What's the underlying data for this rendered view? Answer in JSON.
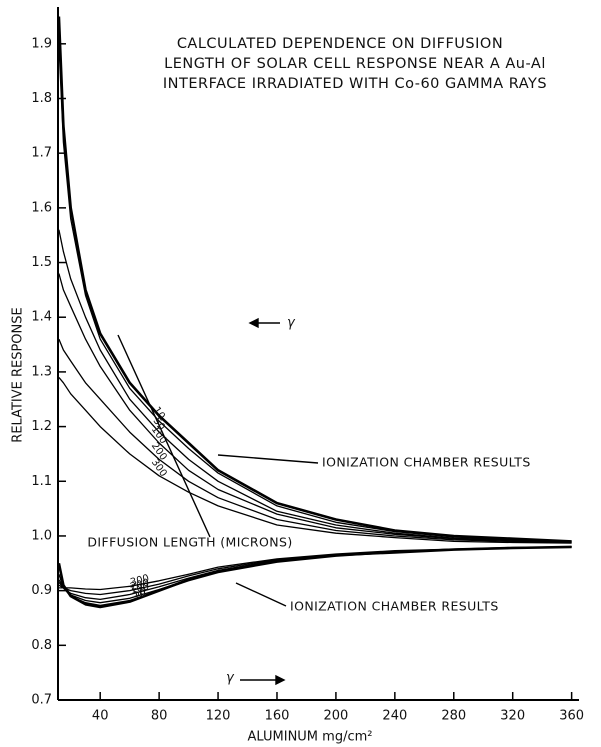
{
  "chart_data": {
    "type": "line",
    "title": [
      "CALCULATED DEPENDENCE ON DIFFUSION",
      "LENGTH OF SOLAR CELL RESPONSE NEAR A Au-Al",
      "INTERFACE IRRADIATED WITH Co-60 GAMMA RAYS"
    ],
    "xlabel": "ALUMINUM mg/cm²",
    "ylabel": "RELATIVE RESPONSE",
    "annotations": [
      "DIFFUSION LENGTH (MICRONS)",
      "γ",
      "γ"
    ],
    "x": [
      12,
      15,
      20,
      30,
      40,
      60,
      80,
      100,
      120,
      160,
      200,
      240,
      280,
      320,
      360
    ],
    "xlim": [
      10,
      365
    ],
    "xticks": [
      40,
      80,
      120,
      160,
      200,
      240,
      280,
      320,
      360
    ],
    "ylim": [
      0.7,
      1.96
    ],
    "yticks": [
      0.7,
      0.8,
      0.9,
      {
        "value": 1,
        "label": "1.0"
      },
      1.1,
      1.2,
      1.3,
      1.4,
      1.5,
      1.6,
      1.7,
      1.8,
      1.9
    ],
    "grid": false,
    "series": [
      {
        "name": "IONIZATION CHAMBER RESULTS",
        "color": "#000",
        "linewidth": 2.6,
        "values": [
          1.95,
          1.75,
          1.6,
          1.45,
          1.37,
          1.28,
          1.22,
          1.17,
          1.12,
          1.06,
          1.03,
          1.01,
          1.0,
          0.995,
          0.99
        ]
      },
      {
        "name": "10",
        "color": "#000",
        "linewidth": 1.3,
        "values": [
          1.9,
          1.72,
          1.58,
          1.44,
          1.36,
          1.27,
          1.21,
          1.16,
          1.115,
          1.055,
          1.025,
          1.008,
          0.998,
          0.993,
          0.99
        ]
      },
      {
        "name": "50",
        "color": "#000",
        "linewidth": 1.3,
        "values": [
          1.56,
          1.52,
          1.47,
          1.4,
          1.34,
          1.25,
          1.19,
          1.14,
          1.1,
          1.045,
          1.02,
          1.005,
          0.996,
          0.992,
          0.99
        ]
      },
      {
        "name": "100",
        "color": "#000",
        "linewidth": 1.3,
        "values": [
          1.48,
          1.45,
          1.42,
          1.36,
          1.31,
          1.23,
          1.17,
          1.12,
          1.085,
          1.04,
          1.015,
          1.003,
          0.995,
          0.99,
          0.988
        ]
      },
      {
        "name": "200",
        "color": "#000",
        "linewidth": 1.3,
        "values": [
          1.36,
          1.34,
          1.32,
          1.28,
          1.25,
          1.19,
          1.14,
          1.1,
          1.07,
          1.03,
          1.01,
          1.0,
          0.993,
          0.99,
          0.988
        ]
      },
      {
        "name": "300",
        "color": "#000",
        "linewidth": 1.3,
        "values": [
          1.29,
          1.28,
          1.26,
          1.23,
          1.2,
          1.15,
          1.11,
          1.08,
          1.055,
          1.02,
          1.005,
          0.997,
          0.99,
          0.988,
          0.987
        ]
      },
      {
        "name": "IONIZATION CHAMBER RESULTS",
        "color": "#000",
        "linewidth": 2.6,
        "values": [
          0.95,
          0.91,
          0.89,
          0.875,
          0.87,
          0.88,
          0.9,
          0.92,
          0.935,
          0.955,
          0.965,
          0.97,
          0.975,
          0.978,
          0.98
        ]
      },
      {
        "name": "10",
        "color": "#000",
        "linewidth": 1.3,
        "values": [
          0.93,
          0.905,
          0.89,
          0.878,
          0.873,
          0.882,
          0.9,
          0.918,
          0.933,
          0.952,
          0.963,
          0.97,
          0.975,
          0.978,
          0.98
        ]
      },
      {
        "name": "50",
        "color": "#000",
        "linewidth": 1.3,
        "values": [
          0.92,
          0.905,
          0.892,
          0.882,
          0.878,
          0.886,
          0.902,
          0.92,
          0.935,
          0.953,
          0.964,
          0.97,
          0.975,
          0.978,
          0.98
        ]
      },
      {
        "name": "100",
        "color": "#000",
        "linewidth": 1.3,
        "values": [
          0.915,
          0.905,
          0.895,
          0.887,
          0.884,
          0.893,
          0.907,
          0.923,
          0.937,
          0.955,
          0.965,
          0.971,
          0.975,
          0.978,
          0.98
        ]
      },
      {
        "name": "200",
        "color": "#000",
        "linewidth": 1.3,
        "values": [
          0.91,
          0.905,
          0.9,
          0.895,
          0.893,
          0.9,
          0.912,
          0.927,
          0.94,
          0.957,
          0.966,
          0.972,
          0.976,
          0.978,
          0.98
        ]
      },
      {
        "name": "300",
        "color": "#000",
        "linewidth": 1.3,
        "values": [
          0.905,
          0.905,
          0.905,
          0.903,
          0.902,
          0.908,
          0.918,
          0.93,
          0.943,
          0.958,
          0.967,
          0.973,
          0.976,
          0.979,
          0.98
        ]
      }
    ]
  }
}
